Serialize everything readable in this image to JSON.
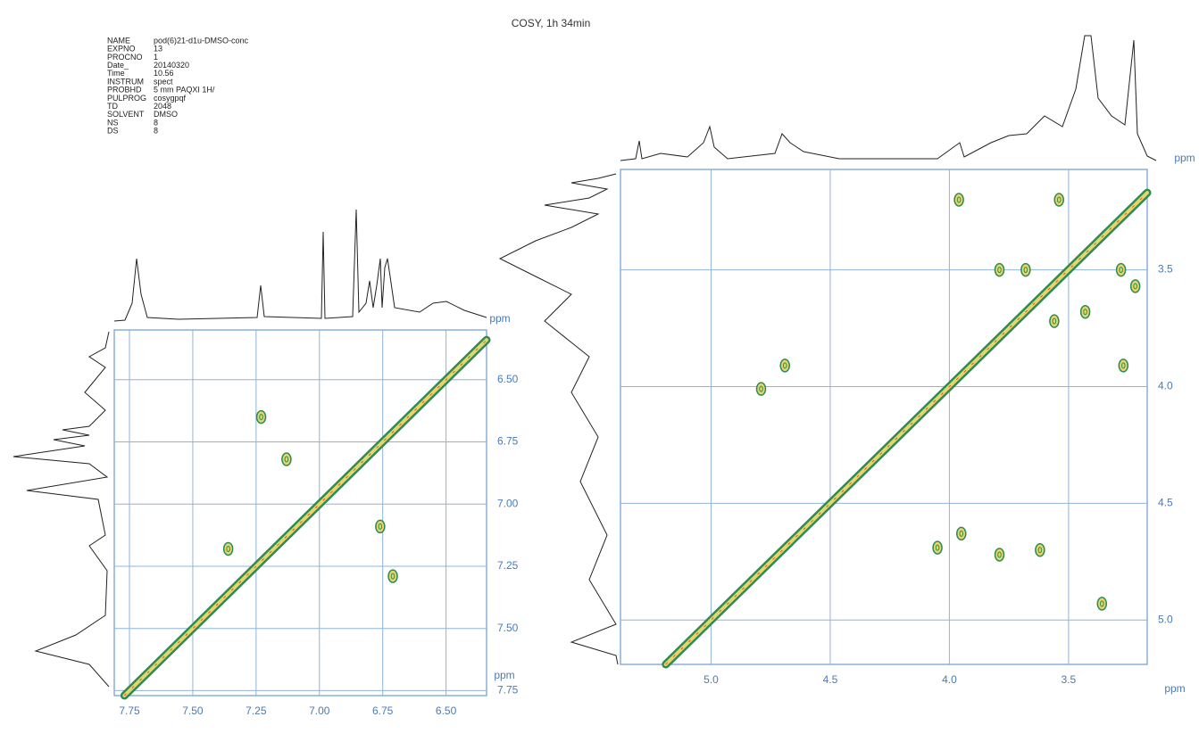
{
  "title": "COSY, 1h 34min",
  "parameters": [
    {
      "name": "NAME",
      "value": "pod(6)21-d1u-DMSO-conc"
    },
    {
      "name": "EXPNO",
      "value": "13"
    },
    {
      "name": "PROCNO",
      "value": "1"
    },
    {
      "name": "Date_",
      "value": "20140320"
    },
    {
      "name": "Time",
      "value": "10.56"
    },
    {
      "name": "INSTRUM",
      "value": "spect"
    },
    {
      "name": "PROBHD",
      "value": "5 mm PAQXI 1H/"
    },
    {
      "name": "PULPROG",
      "value": "cosygpqf"
    },
    {
      "name": "TD",
      "value": "2048"
    },
    {
      "name": "SOLVENT",
      "value": "DMSO"
    },
    {
      "name": "NS",
      "value": "8"
    },
    {
      "name": "DS",
      "value": "8"
    }
  ],
  "chart_data": [
    {
      "type": "contour",
      "x_label": "ppm",
      "y_label": "ppm",
      "xlim": [
        7.81,
        6.34
      ],
      "ylim": [
        6.3,
        7.77
      ],
      "xticks": [
        7.75,
        {
          "value": 7.5,
          "label": "7.50"
        },
        7.25,
        {
          "value": 7.0,
          "label": "7.00"
        },
        6.75,
        {
          "value": 6.5,
          "label": "6.50"
        }
      ],
      "yticks": [
        {
          "value": 6.5,
          "label": "6.50"
        },
        6.75,
        {
          "value": 7.0,
          "label": "7.00"
        },
        7.25,
        {
          "value": 7.5,
          "label": "7.50"
        },
        7.75
      ],
      "grid": true,
      "colors": [
        "#2e8b57",
        "#e6d66a",
        "#e03a20"
      ],
      "x": [
        7.23,
        7.13,
        6.76,
        6.71,
        7.36
      ],
      "y": [
        6.65,
        6.82,
        7.09,
        7.29,
        7.18
      ]
    },
    {
      "type": "contour",
      "x_label": "ppm",
      "y_label": "ppm",
      "xlim": [
        5.38,
        3.17
      ],
      "ylim": [
        3.07,
        5.19
      ],
      "xticks": [
        {
          "value": 5.0,
          "label": "5.0"
        },
        4.5,
        {
          "value": 4.0,
          "label": "4.0"
        },
        3.5
      ],
      "yticks": [
        3.5,
        {
          "value": 4.0,
          "label": "4.0"
        },
        4.5,
        {
          "value": 5.0,
          "label": "5.0"
        }
      ],
      "grid": true,
      "colors": [
        "#2e8b57",
        "#e6d66a",
        "#e03a20"
      ],
      "x": [
        3.96,
        3.54,
        3.79,
        3.68,
        3.28,
        3.56,
        3.43,
        4.69,
        3.27,
        4.79,
        3.95,
        4.05,
        3.79,
        3.62,
        3.36,
        3.22
      ],
      "y": [
        3.2,
        3.2,
        3.5,
        3.5,
        3.5,
        3.72,
        3.68,
        3.91,
        3.91,
        4.01,
        4.63,
        4.69,
        4.72,
        4.7,
        4.93,
        3.57
      ]
    }
  ]
}
